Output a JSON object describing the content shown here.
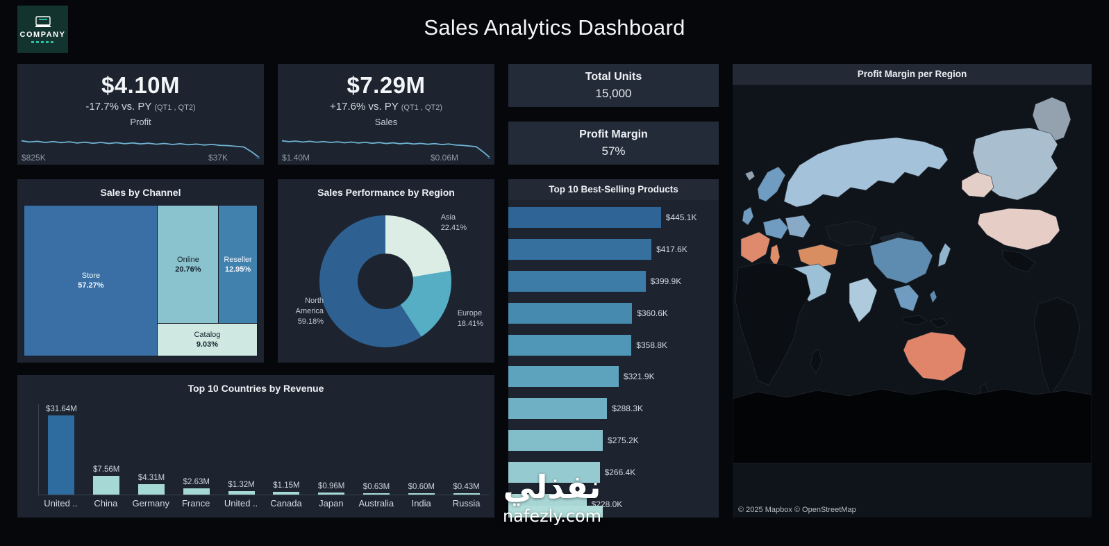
{
  "page": {
    "title": "Sales Analytics Dashboard"
  },
  "logo": {
    "name": "COMPANY"
  },
  "kpis": {
    "profit": {
      "value": "$4.10M",
      "delta": "-17.7% vs. PY",
      "delta_suffix": "(QT1 , QT2)"
    },
    "sales": {
      "value": "$7.29M",
      "delta": "+17.6% vs. PY",
      "delta_suffix": "(QT1 , QT2)"
    },
    "total_units": {
      "label": "Total Units",
      "value": "15,000"
    },
    "profit_margin": {
      "label": "Profit Margin",
      "value": "57%"
    }
  },
  "map": {
    "attribution": "© 2025 Mapbox © OpenStreetMap"
  },
  "watermark": {
    "arabic": "نفذلي",
    "domain": "nafezly.com"
  },
  "chart_data": [
    {
      "id": "profit_trend",
      "type": "line",
      "title": "Profit",
      "start_label": "$825K",
      "end_label": "$37K",
      "unit": "K",
      "color": "#6fb3d2",
      "dot_color": "#25557f",
      "values": [
        825,
        772,
        801,
        748,
        792,
        738,
        778,
        724,
        764,
        710,
        750,
        703,
        740,
        692,
        727,
        681,
        714,
        668,
        702,
        655,
        690,
        643,
        674,
        630,
        658,
        615,
        602,
        572,
        540,
        310,
        37
      ]
    },
    {
      "id": "sales_trend",
      "type": "line",
      "title": "Sales",
      "start_label": "$1.40M",
      "end_label": "$0.06M",
      "unit": "K",
      "color": "#6fb3d2",
      "dot_color": "#25557f",
      "values": [
        1400,
        1335,
        1378,
        1302,
        1362,
        1288,
        1342,
        1268,
        1322,
        1248,
        1302,
        1228,
        1283,
        1208,
        1264,
        1188,
        1242,
        1168,
        1222,
        1148,
        1202,
        1128,
        1182,
        1102,
        1152,
        1072,
        1042,
        992,
        932,
        520,
        60
      ]
    },
    {
      "id": "sales_by_channel",
      "type": "treemap",
      "title": "Sales by Channel",
      "slices": [
        {
          "label": "Store",
          "pct": 57.27,
          "pct_label": "57.27%",
          "color": "#3a6fa5",
          "text": "#f2f6f9"
        },
        {
          "label": "Online",
          "pct": 20.76,
          "pct_label": "20.76%",
          "color": "#8ac2cd",
          "text": "#14222e"
        },
        {
          "label": "Reseller",
          "pct": 12.95,
          "pct_label": "12.95%",
          "color": "#4181ae",
          "text": "#f2f6f9"
        },
        {
          "label": "Catalog",
          "pct": 9.03,
          "pct_label": "9.03%",
          "color": "#cfe9e2",
          "text": "#14222e"
        }
      ]
    },
    {
      "id": "region_donut",
      "type": "pie",
      "title": "Sales Performance by Region",
      "slices": [
        {
          "label": "Asia",
          "pct": 22.41,
          "pct_label": "22.41%",
          "color": "#dcede5"
        },
        {
          "label": "Europe",
          "pct": 18.41,
          "pct_label": "18.41%",
          "color": "#56aec4"
        },
        {
          "label": "North America",
          "pct": 59.18,
          "pct_label": "59.18%",
          "color": "#2e6191"
        }
      ]
    },
    {
      "id": "top_products",
      "type": "bar",
      "orientation": "horizontal",
      "title": "Top 10 Best-Selling Products",
      "labels": [
        "$445.1K",
        "$417.6K",
        "$399.9K",
        "$360.6K",
        "$358.8K",
        "$321.9K",
        "$288.3K",
        "$275.2K",
        "$266.4K",
        "$228.0K"
      ],
      "values_k": [
        445.1,
        417.6,
        399.9,
        360.6,
        358.8,
        321.9,
        288.3,
        275.2,
        266.4,
        228.0
      ],
      "colors": [
        "#2e6496",
        "#35709f",
        "#3d7ca7",
        "#468aaf",
        "#5096b6",
        "#5da3bd",
        "#6fb0c4",
        "#82bdca",
        "#95cad0",
        "#a8d6d5"
      ]
    },
    {
      "id": "top_countries",
      "type": "bar",
      "orientation": "vertical",
      "title": "Top 10 Countries by Revenue",
      "categories": [
        "United ..",
        "China",
        "Germany",
        "France",
        "United ..",
        "Canada",
        "Japan",
        "Australia",
        "India",
        "Russia"
      ],
      "value_labels": [
        "$31.64M",
        "$7.56M",
        "$4.31M",
        "$2.63M",
        "$1.32M",
        "$1.15M",
        "$0.96M",
        "$0.63M",
        "$0.60M",
        "$0.43M"
      ],
      "values_m": [
        31.64,
        7.56,
        4.31,
        2.63,
        1.32,
        1.15,
        0.96,
        0.63,
        0.6,
        0.43
      ],
      "first_color": "#2e6b9e",
      "color": "#a6d9d6"
    },
    {
      "id": "profit_margin_map",
      "type": "heatmap",
      "title": "Profit Margin per Region",
      "regions": [
        {
          "region": "ocean",
          "color": "#0f141b"
        },
        {
          "region": "russia",
          "color": "#a4c2da"
        },
        {
          "region": "scandinavia",
          "color": "#6f9cc0"
        },
        {
          "region": "uk",
          "color": "#6f9cc0"
        },
        {
          "region": "iceland",
          "color": "#93a2ae"
        },
        {
          "region": "central-europe",
          "color": "#6f9cc0"
        },
        {
          "region": "eastern-europe",
          "color": "#89aac6"
        },
        {
          "region": "iberia-france",
          "color": "#e08a6d"
        },
        {
          "region": "italy",
          "color": "#de8f6a"
        },
        {
          "region": "turkey-iran",
          "color": "#d98e62"
        },
        {
          "region": "middle-east",
          "color": "#9cc0d6"
        },
        {
          "region": "kazakhstan",
          "color": "#12171d"
        },
        {
          "region": "mongolia",
          "color": "#1b242c"
        },
        {
          "region": "china",
          "color": "#5d8cb0"
        },
        {
          "region": "india",
          "color": "#aecbdd"
        },
        {
          "region": "se-asia",
          "color": "#6f9cc0"
        },
        {
          "region": "japan",
          "color": "#8fb4cc"
        },
        {
          "region": "philippines",
          "color": "#5d8cb0"
        },
        {
          "region": "indonesia",
          "color": "#0b0e13"
        },
        {
          "region": "australia",
          "color": "#e0846a"
        },
        {
          "region": "new-zealand",
          "color": "#0c0f14"
        },
        {
          "region": "africa",
          "color": "#0b0e13"
        },
        {
          "region": "madagascar",
          "color": "#0b0e13"
        },
        {
          "region": "greenland",
          "color": "#93a2ae"
        },
        {
          "region": "canada",
          "color": "#a9bfd0"
        },
        {
          "region": "alaska",
          "color": "#e4cfc8"
        },
        {
          "region": "usa",
          "color": "#e6cdc6"
        },
        {
          "region": "mexico",
          "color": "#0b0e13"
        },
        {
          "region": "south-america",
          "color": "#0c0f14"
        },
        {
          "region": "antarctica",
          "color": "#030406"
        }
      ]
    }
  ]
}
